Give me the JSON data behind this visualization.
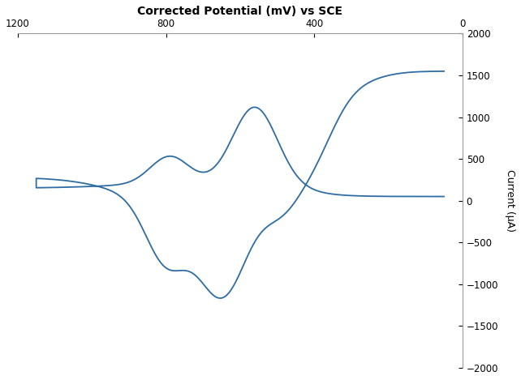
{
  "title": "Corrected Potential (mV) vs SCE",
  "ylabel": "Current (µA)",
  "xlim": [
    1200,
    0
  ],
  "ylim": [
    -2000,
    2000
  ],
  "xticks": [
    1200,
    800,
    400,
    0
  ],
  "yticks": [
    -2000,
    -1500,
    -1000,
    -500,
    0,
    500,
    1000,
    1500,
    2000
  ],
  "line_color": "#2e6da4",
  "background_color": "#ffffff",
  "title_fontsize": 10,
  "label_fontsize": 9,
  "tick_fontsize": 8.5
}
